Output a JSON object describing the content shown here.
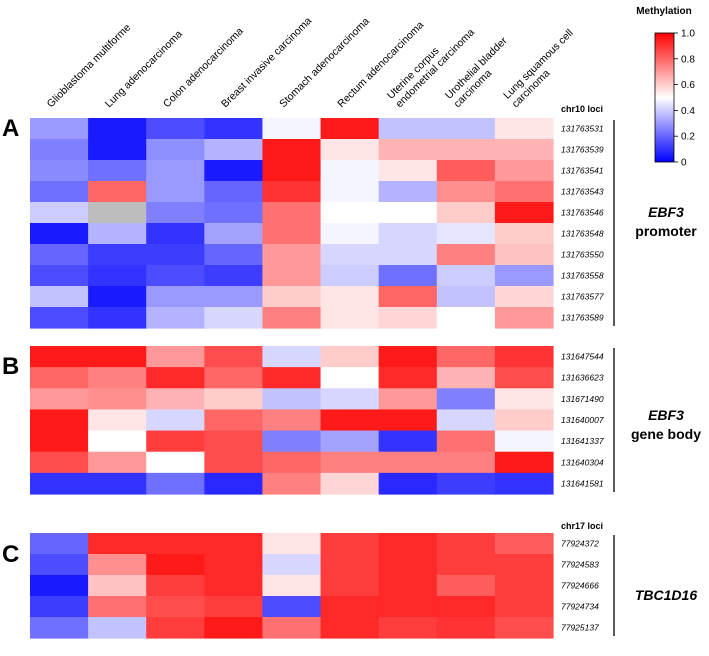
{
  "chart_data": {
    "type": "heatmap",
    "columns": [
      {
        "lines": [
          "Glioblastoma multiforme"
        ]
      },
      {
        "lines": [
          "Lung adenocarcinoma"
        ]
      },
      {
        "lines": [
          "Colon adenocarcinoma"
        ]
      },
      {
        "lines": [
          "Breast invasive carcinoma"
        ]
      },
      {
        "lines": [
          "Stomach adenocarcinoma"
        ]
      },
      {
        "lines": [
          "Rectum adenocarcinoma"
        ]
      },
      {
        "lines": [
          "Uterine corpus",
          "endometrial carcinoma"
        ]
      },
      {
        "lines": [
          "Urothelial bladder",
          "carcinoma"
        ]
      },
      {
        "lines": [
          "Lung squamous cell",
          "carcinoma"
        ]
      }
    ],
    "colorbar": {
      "title": "Methylation",
      "min": 0,
      "max": 1,
      "ticks": [
        "0",
        "0.2",
        "0.4",
        "0.6",
        "0.8",
        "1.0"
      ],
      "low_color": "#0000ff",
      "mid_color": "#ffffff",
      "high_color": "#ff0000"
    },
    "panels": [
      {
        "letter": "A",
        "header": "chr10 loci",
        "gene": "EBF3",
        "region": "promoter",
        "rows": [
          {
            "locus": "131763531",
            "values": [
              0.3,
              0.05,
              0.15,
              0.1,
              0.48,
              0.95,
              0.38,
              0.38,
              0.55
            ]
          },
          {
            "locus": "131763539",
            "values": [
              0.25,
              0.05,
              0.28,
              0.35,
              0.95,
              0.55,
              0.65,
              0.65,
              0.65
            ]
          },
          {
            "locus": "131763541",
            "values": [
              0.27,
              0.22,
              0.3,
              0.05,
              0.95,
              0.48,
              0.55,
              0.82,
              0.7
            ]
          },
          {
            "locus": "131763543",
            "values": [
              0.22,
              0.8,
              0.3,
              0.2,
              0.9,
              0.48,
              0.35,
              0.72,
              0.78
            ]
          },
          {
            "locus": "131763546",
            "values": [
              0.4,
              null,
              0.25,
              0.22,
              0.78,
              0.5,
              0.5,
              0.6,
              0.95
            ]
          },
          {
            "locus": "131763548",
            "values": [
              0.05,
              0.35,
              0.1,
              0.32,
              0.78,
              0.48,
              0.42,
              0.45,
              0.6
            ]
          },
          {
            "locus": "131763550",
            "values": [
              0.2,
              0.12,
              0.12,
              0.2,
              0.7,
              0.42,
              0.42,
              0.75,
              0.62
            ]
          },
          {
            "locus": "131763558",
            "values": [
              0.15,
              0.1,
              0.15,
              0.12,
              0.7,
              0.4,
              0.22,
              0.4,
              0.3
            ]
          },
          {
            "locus": "131763577",
            "values": [
              0.38,
              0.05,
              0.3,
              0.3,
              0.6,
              0.55,
              0.8,
              0.38,
              0.58
            ]
          },
          {
            "locus": "131763589",
            "values": [
              0.15,
              0.1,
              0.35,
              0.42,
              0.75,
              0.55,
              0.58,
              0.5,
              0.7
            ]
          }
        ]
      },
      {
        "letter": "B",
        "header": "",
        "gene": "EBF3",
        "region": "gene body",
        "rows": [
          {
            "locus": "131647544",
            "values": [
              0.95,
              0.95,
              0.7,
              0.85,
              0.42,
              0.6,
              0.95,
              0.8,
              0.9
            ]
          },
          {
            "locus": "131636623",
            "values": [
              0.8,
              0.75,
              0.92,
              0.8,
              0.92,
              0.5,
              0.92,
              0.65,
              0.85
            ]
          },
          {
            "locus": "131671490",
            "values": [
              0.7,
              0.72,
              0.65,
              0.6,
              0.38,
              0.42,
              0.7,
              0.25,
              0.55
            ]
          },
          {
            "locus": "131640007",
            "values": [
              0.95,
              0.55,
              0.42,
              0.8,
              0.75,
              0.95,
              0.95,
              0.42,
              0.6
            ]
          },
          {
            "locus": "131641337",
            "values": [
              0.95,
              0.5,
              0.88,
              0.85,
              0.25,
              0.32,
              0.1,
              0.78,
              0.48
            ]
          },
          {
            "locus": "131640304",
            "values": [
              0.85,
              0.7,
              0.5,
              0.85,
              0.8,
              0.75,
              0.75,
              0.75,
              0.95
            ]
          },
          {
            "locus": "131641581",
            "values": [
              0.1,
              0.1,
              0.22,
              0.08,
              0.75,
              0.58,
              0.08,
              0.12,
              0.1
            ]
          }
        ]
      },
      {
        "letter": "C",
        "header": "chr17 loci",
        "gene": "TBC1D16",
        "region": "",
        "rows": [
          {
            "locus": "77924372",
            "values": [
              0.2,
              0.92,
              0.92,
              0.92,
              0.55,
              0.88,
              0.92,
              0.88,
              0.82
            ]
          },
          {
            "locus": "77924583",
            "values": [
              0.15,
              0.72,
              0.95,
              0.92,
              0.42,
              0.88,
              0.92,
              0.88,
              0.88
            ]
          },
          {
            "locus": "77924666",
            "values": [
              0.05,
              0.62,
              0.88,
              0.92,
              0.55,
              0.88,
              0.92,
              0.82,
              0.88
            ]
          },
          {
            "locus": "77924734",
            "values": [
              0.12,
              0.78,
              0.85,
              0.88,
              0.15,
              0.92,
              0.92,
              0.92,
              0.88
            ]
          },
          {
            "locus": "77925137",
            "values": [
              0.22,
              0.38,
              0.88,
              0.95,
              0.78,
              0.92,
              0.88,
              0.9,
              0.85
            ]
          }
        ]
      }
    ],
    "missing_color": "#bdbdbd"
  }
}
